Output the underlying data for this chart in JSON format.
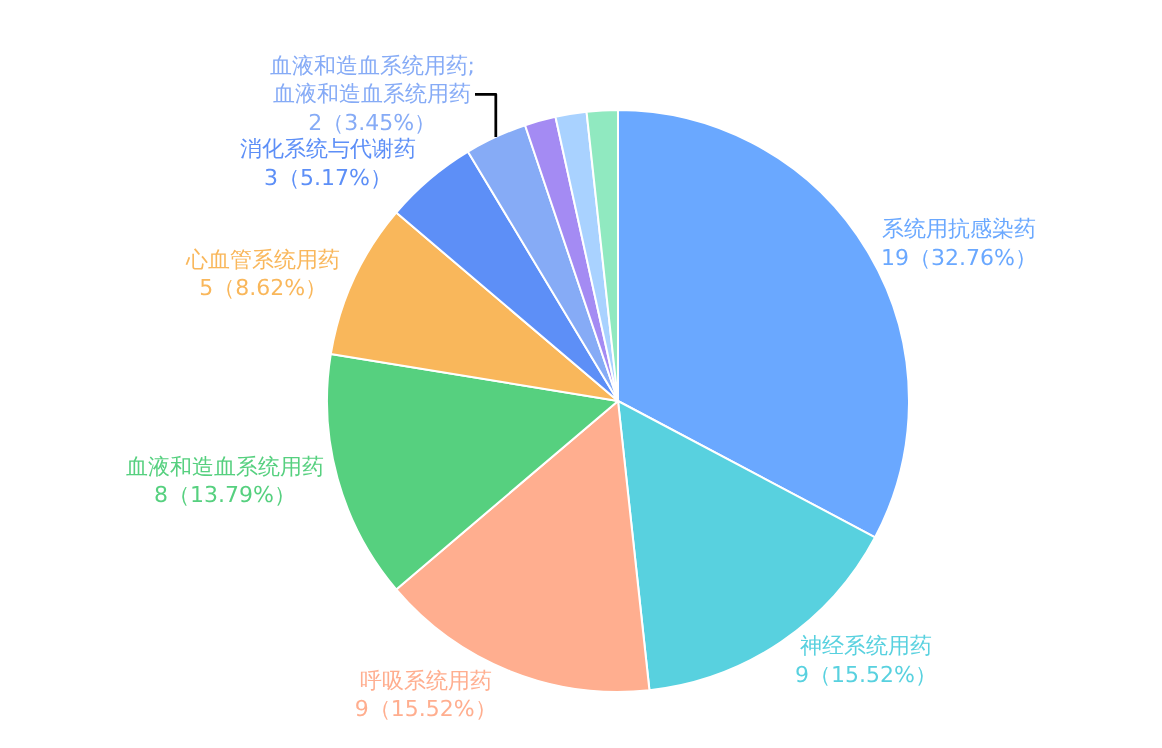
{
  "chart_data": {
    "type": "pie",
    "categories": [
      "系统用抗感染药",
      "神经系统用药",
      "呼吸系统用药",
      "血液和造血系统用药",
      "心血管系统用药",
      "消化系统与代谢药",
      "血液和造血系统用药; 血液和造血系统用药",
      null,
      null,
      null
    ],
    "values": [
      19,
      9,
      9,
      8,
      5,
      3,
      2,
      1,
      1,
      1
    ],
    "value_labels": [
      "19（32.76%）",
      "9（15.52%）",
      "9（15.52%）",
      "8（13.79%）",
      "5（8.62%）",
      "3（5.17%）",
      "2（3.45%）",
      null,
      null,
      null
    ],
    "colors": [
      "#6aa8ff",
      "#58d1df",
      "#ffae8f",
      "#56d07f",
      "#f9b75b",
      "#5d8ff7",
      "#86abf6",
      "#a48bf3",
      "#a9d2ff",
      "#90e9c0"
    ],
    "legend": false
  }
}
